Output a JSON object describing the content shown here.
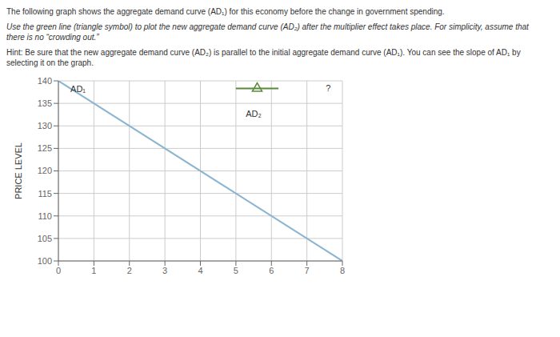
{
  "chart_data": {
    "type": "line",
    "title": "The following graph shows the aggregate demand curve (AD₁) for this economy before the change in government spending.",
    "subtitle": [
      "Use the green line (triangle symbol) to plot the new aggregate demand curve (AD₂) after the multiplier effect takes place. For simplicity, assume that\nthere is no “crowding out.”",
      "Hint: Be sure that the new aggregate demand curve (AD₂) is parallel to the initial aggregate demand curve (AD₁). You can see the slope of AD₁ by\nselecting it on the graph."
    ],
    "ylabel": "PRICE LEVEL",
    "xlim": [
      0,
      8
    ],
    "ylim": [
      100,
      140
    ],
    "xticks": [
      0,
      1,
      2,
      3,
      4,
      5,
      6,
      7,
      8
    ],
    "yticks": [
      100,
      105,
      110,
      115,
      120,
      125,
      130,
      135,
      140
    ],
    "grid": true,
    "series": [
      {
        "type": "line",
        "color": "#8ab4d0",
        "x": [
          0,
          8
        ],
        "values": [
          140,
          100
        ]
      },
      {
        "type": "line",
        "color": "#5a8a3a",
        "x": [
          5.0,
          6.2
        ],
        "values": [
          138.3,
          138.3
        ]
      },
      {
        "type": "scatter",
        "color": "#5a8a3a",
        "marker": "triangle",
        "x": [
          5.6
        ],
        "values": [
          138.3
        ]
      }
    ],
    "annotations": [
      {
        "text": "AD₁",
        "x": 0.25,
        "y": 139.0
      },
      {
        "text": "AD₂",
        "x": 5.5,
        "y": 133.5
      },
      {
        "text": "?",
        "x": 7.6,
        "y": 139.2
      }
    ]
  }
}
